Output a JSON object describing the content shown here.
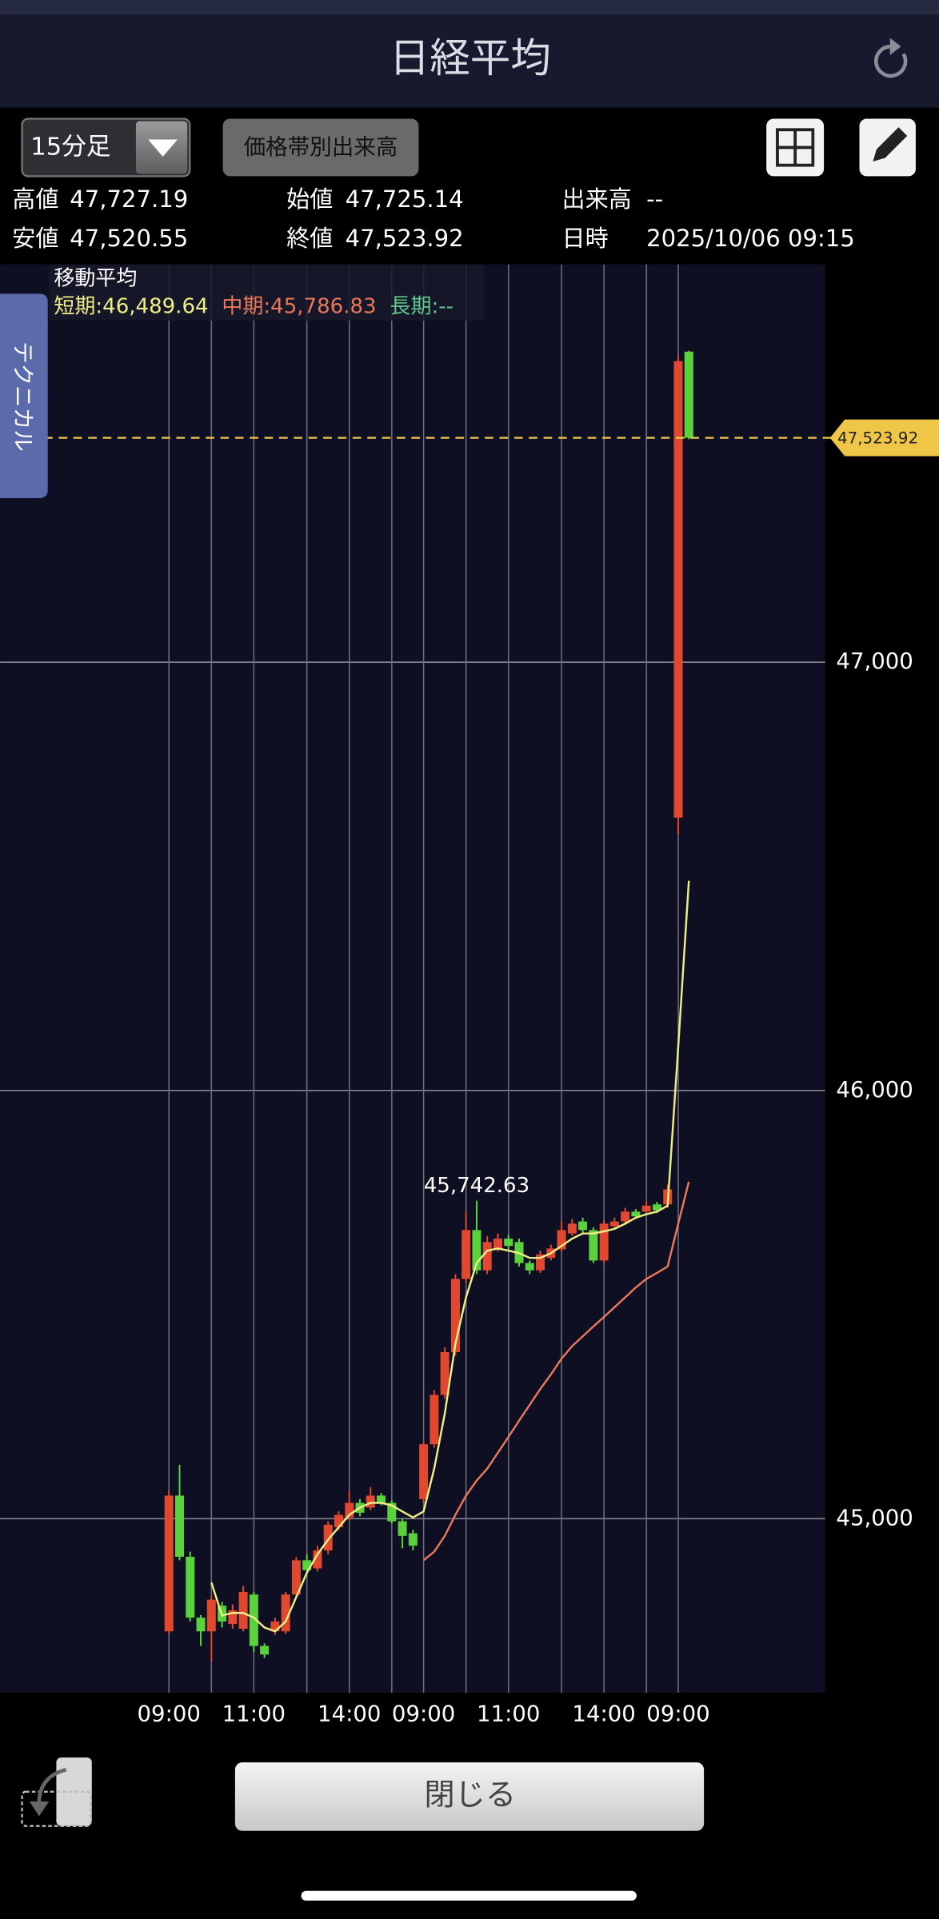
{
  "header": {
    "title": "日経平均"
  },
  "toolbar": {
    "interval": "15分足",
    "volume_button": "価格帯別出来高"
  },
  "info": [
    {
      "label": "高値",
      "value": "47,727.19"
    },
    {
      "label": "始値",
      "value": "47,725.14"
    },
    {
      "label": "出来高",
      "value": "--"
    },
    {
      "label": "安値",
      "value": "47,520.55"
    },
    {
      "label": "終値",
      "value": "47,523.92"
    },
    {
      "label": "日時",
      "value": "2025/10/06 09:15"
    }
  ],
  "side_tab": "テクニカル",
  "footer": {
    "close": "閉じる"
  },
  "chart_data": {
    "type": "candlestick",
    "categories": [
      "09:00",
      null,
      null,
      null,
      null,
      null,
      null,
      null,
      "11:00",
      null,
      null,
      null,
      null,
      null,
      null,
      null,
      null,
      "14:00",
      null,
      null,
      null,
      null,
      null,
      null,
      "09:00",
      null,
      null,
      null,
      null,
      null,
      null,
      null,
      "11:00",
      null,
      null,
      null,
      null,
      null,
      null,
      null,
      null,
      "14:00",
      null,
      null,
      null,
      null,
      null,
      null,
      "09:00",
      null
    ],
    "open": [
      44737,
      45054,
      44911,
      44769,
      44737,
      44797,
      44754,
      44743,
      44823,
      44703,
      44737,
      44737,
      44823,
      44903,
      44884,
      44926,
      44980,
      45003,
      45037,
      45026,
      45054,
      45037,
      44994,
      44966,
      45046,
      45174,
      45289,
      45389,
      45560,
      45674,
      45580,
      45631,
      45654,
      45646,
      45597,
      45580,
      45609,
      45629,
      45666,
      45694,
      45674,
      45603,
      45683,
      45694,
      45717,
      45717,
      45734,
      45734,
      46637,
      47725.14
    ],
    "high": [
      45066,
      45126,
      44923,
      44775,
      44822,
      44806,
      44800,
      44843,
      44829,
      44709,
      44769,
      44829,
      44911,
      44917,
      44937,
      44994,
      45017,
      45066,
      45046,
      45074,
      45060,
      45043,
      45000,
      44974,
      45180,
      45300,
      45400,
      45571,
      45717,
      45742.63,
      45660,
      45666,
      45663,
      45654,
      45603,
      45626,
      45640,
      45694,
      45700,
      45703,
      45680,
      45697,
      45703,
      45726,
      45723,
      45740,
      45740,
      45780,
      47717,
      47727.19
    ],
    "low": [
      44731,
      44903,
      44760,
      44703,
      44666,
      44746,
      44743,
      44737,
      44689,
      44675,
      44729,
      44731,
      44817,
      44871,
      44877,
      44917,
      44974,
      44997,
      45006,
      45020,
      45031,
      44989,
      44931,
      44926,
      45037,
      45166,
      45280,
      45380,
      45551,
      45571,
      45571,
      45623,
      45629,
      45589,
      45571,
      45574,
      45603,
      45623,
      45660,
      45666,
      45597,
      45597,
      45677,
      45686,
      45700,
      45711,
      45714,
      45726,
      46597,
      47520.55
    ],
    "close": [
      45054,
      44911,
      44769,
      44737,
      44811,
      44760,
      44786,
      44829,
      44703,
      44683,
      44760,
      44823,
      44903,
      44880,
      44926,
      44986,
      45009,
      45037,
      45014,
      45054,
      45037,
      44994,
      44960,
      44937,
      45174,
      45289,
      45389,
      45560,
      45674,
      45580,
      45646,
      45654,
      45637,
      45597,
      45580,
      45617,
      45631,
      45674,
      45689,
      45674,
      45603,
      45689,
      45694,
      45717,
      45706,
      45731,
      45720,
      45769,
      47703,
      47523.92
    ],
    "up_color": "#e0482f",
    "down_color": "#5cd13e",
    "legend_title": "移動平均",
    "series": [
      {
        "name": "短期:46,489.64",
        "color": "#eeee86",
        "values": [
          null,
          null,
          null,
          null,
          44851,
          44774,
          44780,
          44780,
          44769,
          44746,
          44737,
          44760,
          44817,
          44874,
          44917,
          44951,
          44980,
          45009,
          45026,
          45037,
          45037,
          45031,
          45017,
          45003,
          45017,
          45117,
          45246,
          45409,
          45517,
          45597,
          45626,
          45631,
          45626,
          45620,
          45609,
          45609,
          45620,
          45637,
          45654,
          45666,
          45666,
          45671,
          45677,
          45689,
          45703,
          45711,
          45717,
          45731,
          46103,
          46489.64
        ]
      },
      {
        "name": "中期:45,786.83",
        "color": "#e8785a",
        "values": [
          null,
          null,
          null,
          null,
          null,
          null,
          null,
          null,
          null,
          null,
          null,
          null,
          null,
          null,
          null,
          null,
          null,
          null,
          null,
          null,
          null,
          null,
          null,
          null,
          44903,
          44923,
          44960,
          45009,
          45054,
          45089,
          45117,
          45154,
          45191,
          45229,
          45266,
          45303,
          45337,
          45374,
          45403,
          45426,
          45449,
          45471,
          45494,
          45517,
          45540,
          45560,
          45574,
          45589,
          45689,
          45786.83
        ]
      },
      {
        "name": "長期:--",
        "color": "#5fc88a",
        "values": [
          null,
          null,
          null,
          null,
          null,
          null,
          null,
          null,
          null,
          null,
          null,
          null,
          null,
          null,
          null,
          null,
          null,
          null,
          null,
          null,
          null,
          null,
          null,
          null,
          null,
          null,
          null,
          null,
          null,
          null,
          null,
          null,
          null,
          null,
          null,
          null,
          null,
          null,
          null,
          null,
          null,
          null,
          null,
          null,
          null,
          null,
          null,
          null,
          null,
          null
        ]
      }
    ],
    "ylim": [
      44594,
      47929
    ],
    "yticks": [
      {
        "value": 45000,
        "label": "45,000"
      },
      {
        "value": 46000,
        "label": "46,000"
      },
      {
        "value": 47000,
        "label": "47,000"
      }
    ],
    "grid": true,
    "annotations": [
      {
        "value": 45742.63,
        "label": "45,742.63"
      }
    ],
    "last_price": {
      "value": 47523.92,
      "label": "47,523.92"
    }
  }
}
